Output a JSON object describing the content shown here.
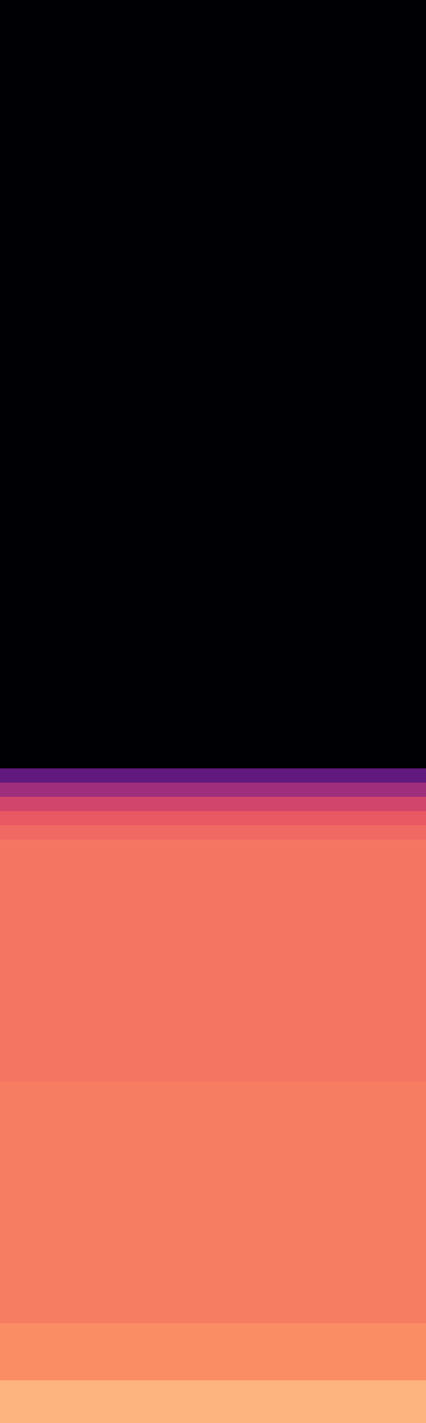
{
  "chart_data": {
    "type": "heatmap",
    "tick_labels": false,
    "zlim": [
      -80,
      0
    ],
    "cells": [
      [
        -80
      ],
      [
        -80
      ],
      [
        -80
      ],
      [
        -80
      ],
      [
        -80
      ],
      [
        -80
      ],
      [
        -80
      ],
      [
        -80
      ],
      [
        -80
      ],
      [
        -80
      ],
      [
        -80
      ],
      [
        -80
      ],
      [
        -80
      ],
      [
        -80
      ],
      [
        -80
      ],
      [
        -80
      ],
      [
        -80
      ],
      [
        -80
      ],
      [
        -80
      ],
      [
        -80
      ],
      [
        -80
      ],
      [
        -80
      ],
      [
        -80
      ],
      [
        -80
      ],
      [
        -80
      ],
      [
        -80
      ],
      [
        -80
      ],
      [
        -80
      ],
      [
        -80
      ],
      [
        -80
      ],
      [
        -80
      ],
      [
        -80
      ],
      [
        -80
      ],
      [
        -80
      ],
      [
        -80
      ],
      [
        -80
      ],
      [
        -80
      ],
      [
        -80
      ],
      [
        -80
      ],
      [
        -80
      ],
      [
        -80
      ],
      [
        -80
      ],
      [
        -80
      ],
      [
        -80
      ],
      [
        -80
      ],
      [
        -80
      ],
      [
        -80
      ],
      [
        -80
      ],
      [
        -80
      ],
      [
        -80
      ],
      [
        -80
      ],
      [
        -80
      ],
      [
        -80
      ],
      [
        -80
      ],
      [
        -56
      ],
      [
        -44
      ],
      [
        -34
      ],
      [
        -28
      ],
      [
        -25
      ],
      [
        -23
      ],
      [
        -23
      ],
      [
        -23
      ],
      [
        -23
      ],
      [
        -23
      ],
      [
        -23
      ],
      [
        -23
      ],
      [
        -23
      ],
      [
        -23
      ],
      [
        -23
      ],
      [
        -23
      ],
      [
        -23
      ],
      [
        -23
      ],
      [
        -23
      ],
      [
        -23
      ],
      [
        -23
      ],
      [
        -23
      ],
      [
        -22
      ],
      [
        -22
      ],
      [
        -22
      ],
      [
        -22
      ],
      [
        -22
      ],
      [
        -22
      ],
      [
        -22
      ],
      [
        -22
      ],
      [
        -22
      ],
      [
        -22
      ],
      [
        -22
      ],
      [
        -22
      ],
      [
        -22
      ],
      [
        -22
      ],
      [
        -22
      ],
      [
        -22
      ],
      [
        -22
      ],
      [
        -19
      ],
      [
        -19
      ],
      [
        -19
      ],
      [
        -19
      ],
      [
        -12
      ],
      [
        -12
      ],
      [
        -12
      ]
    ]
  }
}
